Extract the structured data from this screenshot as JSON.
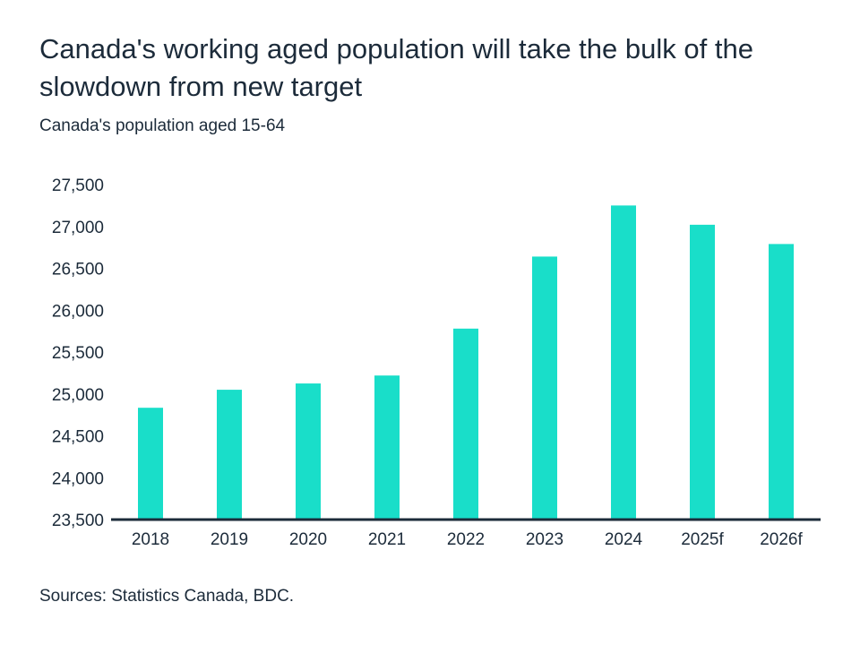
{
  "title": "Canada's working aged population will take the bulk of the slowdown from new target",
  "subtitle": "Canada's population aged 15-64",
  "source": "Sources: Statistics Canada, BDC.",
  "colors": {
    "bar": "#19dec9",
    "axis": "#1c2b3a",
    "text": "#1c2b3a"
  },
  "chart_data": {
    "type": "bar",
    "title": "Canada's working aged population will take the bulk of the slowdown from new target",
    "subtitle": "Canada's population aged 15-64",
    "xlabel": "",
    "ylabel": "",
    "categories": [
      "2018",
      "2019",
      "2020",
      "2021",
      "2022",
      "2023",
      "2024",
      "2025f",
      "2026f"
    ],
    "values": [
      24835,
      25050,
      25125,
      25220,
      25780,
      26640,
      27250,
      27020,
      26790
    ],
    "ylim": [
      23500,
      27500
    ],
    "yticks": [
      23500,
      24000,
      24500,
      25000,
      25500,
      26000,
      26500,
      27000,
      27500
    ],
    "ytick_labels": [
      "23,500",
      "24,000",
      "24,500",
      "25,000",
      "25,500",
      "26,000",
      "26,500",
      "27,000",
      "27,500"
    ],
    "grid": false,
    "legend": "none"
  }
}
